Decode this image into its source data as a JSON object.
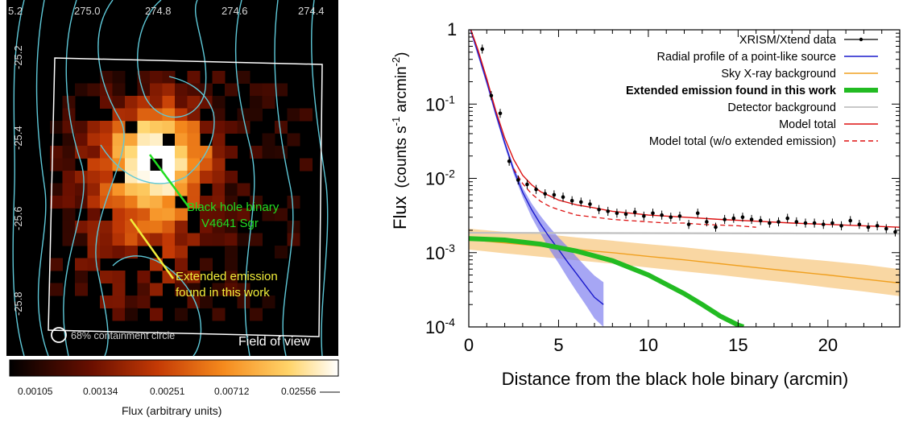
{
  "left_panel": {
    "ra_ticks": [
      "5.2",
      "275.0",
      "274.8",
      "274.6",
      "274.4"
    ],
    "dec_ticks": [
      "-25.2",
      "-25.4",
      "-25.6",
      "-25.8"
    ],
    "annotations": {
      "bh_line1": "Black hole binary",
      "bh_line2": "V4641 Sgr",
      "ext_line1": "Extended emission",
      "ext_line2": "found in this work",
      "containment": "68% containment circle",
      "fov": "Field of view"
    },
    "colors": {
      "contour": "#5ec8d8",
      "bh_annotation": "#22dd22",
      "ext_annotation": "#f2ee3a",
      "fov_box": "#ffffff"
    },
    "colorbar": {
      "ticks": [
        "0.00105",
        "0.00134",
        "0.00251",
        "0.00712",
        "0.02556"
      ],
      "label": "Flux (arbitrary units)"
    }
  },
  "chart_data": {
    "type": "line",
    "ylabel_main": "Flux",
    "ylabel_units": "(counts s",
    "ylabel_sup1": "-1",
    "ylabel_mid": " arcmin",
    "ylabel_sup2": "-2",
    "ylabel_close": ")",
    "xlabel": "Distance from the black hole binary (arcmin)",
    "y_log": true,
    "xlim": [
      0,
      24
    ],
    "ylim": [
      0.0001,
      1
    ],
    "x_ticks": [
      "0",
      "5",
      "10",
      "15",
      "20"
    ],
    "y_tick_base": [
      "10",
      "10",
      "10",
      "10"
    ],
    "y_tick_exp": [
      "-1",
      "-2",
      "-3",
      "-4"
    ],
    "y_top_tick": "1",
    "legend": [
      {
        "label": "XRISM/Xtend data",
        "color": "#000000",
        "style": "data"
      },
      {
        "label": "Radial profile of a point-like source",
        "color": "#1a1acc",
        "style": "line"
      },
      {
        "label": "Sky X-ray background",
        "color": "#f0a020",
        "style": "line"
      },
      {
        "label": "Extended emission found in this work",
        "color": "#22bb22",
        "style": "thick",
        "bold": true
      },
      {
        "label": "Detector background",
        "color": "#c0c0c0",
        "style": "line"
      },
      {
        "label": "Model total",
        "color": "#dd1111",
        "style": "line"
      },
      {
        "label": "Model total (w/o extended emission)",
        "color": "#dd1111",
        "style": "dashed"
      }
    ],
    "data_points": {
      "x": [
        0.75,
        1.25,
        1.75,
        2.25,
        2.75,
        3.25,
        3.75,
        4.25,
        4.75,
        5.25,
        5.75,
        6.25,
        6.75,
        7.25,
        7.75,
        8.25,
        8.75,
        9.25,
        9.75,
        10.25,
        10.75,
        11.25,
        11.75,
        12.25,
        12.75,
        13.25,
        13.75,
        14.25,
        14.75,
        15.25,
        15.75,
        16.25,
        16.75,
        17.25,
        17.75,
        18.25,
        18.75,
        19.25,
        19.75,
        20.25,
        20.75,
        21.25,
        21.75,
        22.25,
        22.75,
        23.25,
        23.75
      ],
      "y": [
        0.55,
        0.13,
        0.075,
        0.017,
        0.0095,
        0.0083,
        0.0071,
        0.0062,
        0.006,
        0.0056,
        0.005,
        0.0048,
        0.0045,
        0.0038,
        0.0036,
        0.0034,
        0.0033,
        0.0035,
        0.0031,
        0.0034,
        0.0032,
        0.003,
        0.0031,
        0.0024,
        0.0034,
        0.0026,
        0.0022,
        0.0028,
        0.0029,
        0.003,
        0.0028,
        0.0027,
        0.0025,
        0.0026,
        0.0029,
        0.0026,
        0.0025,
        0.0025,
        0.0024,
        0.0025,
        0.0023,
        0.0027,
        0.0024,
        0.0022,
        0.0023,
        0.0021,
        0.0019
      ]
    },
    "series": [
      {
        "id": "point_source",
        "color": "#1a1acc",
        "x": [
          0,
          0.5,
          1,
          1.5,
          2,
          2.5,
          3,
          3.5,
          4,
          4.5,
          5,
          5.5,
          6,
          6.5,
          7,
          7.5
        ],
        "y": [
          1.2,
          0.5,
          0.2,
          0.075,
          0.03,
          0.013,
          0.0065,
          0.0038,
          0.0024,
          0.0016,
          0.0011,
          0.00075,
          0.00052,
          0.00036,
          0.00025,
          0.0002
        ],
        "band_upper": [
          1.3,
          0.55,
          0.22,
          0.082,
          0.033,
          0.0145,
          0.0075,
          0.0046,
          0.0031,
          0.0022,
          0.0016,
          0.0012,
          0.00088,
          0.00065,
          0.00049,
          0.0004
        ],
        "band_lower": [
          1.1,
          0.45,
          0.18,
          0.068,
          0.027,
          0.0115,
          0.0056,
          0.003,
          0.0018,
          0.0011,
          0.00072,
          0.00046,
          0.0003,
          0.0002,
          0.00013,
          0.0001
        ]
      },
      {
        "id": "sky_background",
        "color": "#f0a020",
        "x": [
          0,
          2,
          4,
          6,
          8,
          10,
          12,
          14,
          16,
          18,
          20,
          22,
          24
        ],
        "y": [
          0.0015,
          0.00135,
          0.00122,
          0.0011,
          0.001,
          0.00089,
          0.0008,
          0.00071,
          0.00063,
          0.00056,
          0.0005,
          0.00044,
          0.00039
        ],
        "band_upper": [
          0.0021,
          0.0019,
          0.0018,
          0.0016,
          0.00145,
          0.0013,
          0.00118,
          0.00105,
          0.00095,
          0.00085,
          0.00077,
          0.00069,
          0.0006
        ],
        "band_lower": [
          0.0011,
          0.00098,
          0.00088,
          0.00079,
          0.00071,
          0.00063,
          0.00056,
          0.0005,
          0.00044,
          0.00039,
          0.00034,
          0.0003,
          0.00026
        ]
      },
      {
        "id": "extended_emission",
        "color": "#22bb22",
        "x": [
          0,
          2,
          4,
          6,
          8,
          10,
          12,
          13,
          14,
          15,
          15.3
        ],
        "y": [
          0.00155,
          0.00148,
          0.0013,
          0.00105,
          0.00078,
          0.0005,
          0.00028,
          0.0002,
          0.00014,
          0.000106,
          0.0001
        ]
      },
      {
        "id": "detector_background",
        "color": "#c0c0c0",
        "x": [
          0,
          24
        ],
        "y": [
          0.00185,
          0.0018
        ]
      },
      {
        "id": "model_total",
        "color": "#dd1111",
        "x": [
          0,
          0.5,
          1,
          1.5,
          2,
          2.5,
          3,
          3.5,
          4,
          4.5,
          5,
          6,
          7,
          8,
          9,
          10,
          12,
          14,
          16,
          18,
          20,
          22,
          24
        ],
        "y": [
          1.2,
          0.55,
          0.22,
          0.082,
          0.035,
          0.018,
          0.011,
          0.0082,
          0.0066,
          0.0058,
          0.0051,
          0.0044,
          0.004,
          0.0036,
          0.0034,
          0.0032,
          0.003,
          0.0028,
          0.00265,
          0.0025,
          0.0024,
          0.0023,
          0.0022
        ]
      },
      {
        "id": "model_total_no_ext",
        "color": "#dd1111",
        "x": [
          2.5,
          3,
          3.5,
          4,
          4.5,
          5,
          6,
          7,
          8,
          9,
          10,
          11,
          12,
          13,
          14,
          15,
          16
        ],
        "y": [
          0.0135,
          0.0085,
          0.0062,
          0.0049,
          0.0042,
          0.0038,
          0.0032,
          0.003,
          0.0028,
          0.0027,
          0.0026,
          0.0025,
          0.0025,
          0.0024,
          0.00235,
          0.0023,
          0.0022
        ]
      }
    ]
  }
}
